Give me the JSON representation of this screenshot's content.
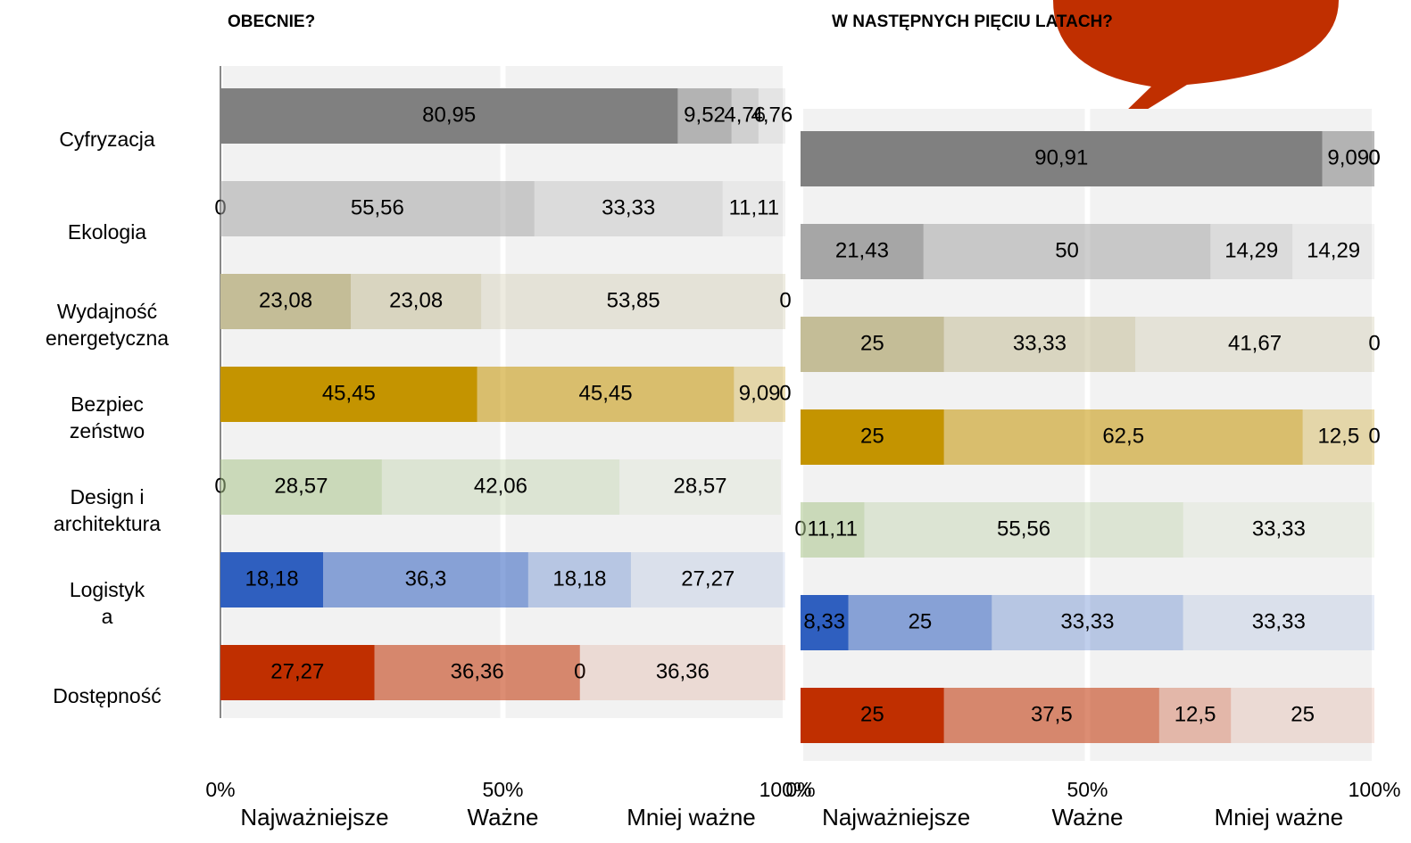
{
  "chart_data": [
    {
      "type": "stacked-bar",
      "title": "OBECNIE?",
      "categories": [
        "Cyfryzacja",
        "Ekologia",
        "Wydajność\nenergetyczna",
        "Bezpiec\nzeństwo",
        "Design i\narchitektura",
        "Logistyk\na",
        "Dostępność"
      ],
      "colors": [
        "#808080",
        "#a6a6a6",
        "#c4bd97",
        "#c49400",
        "#a9c48a",
        "#2f5fbf",
        "#c02f00"
      ],
      "series": [
        {
          "name": "Najważniejsze",
          "values": [
            80.95,
            0,
            23.08,
            45.45,
            0,
            18.18,
            27.27
          ],
          "value_labels": [
            "80,95",
            "0",
            "23,08",
            "45,45",
            "0",
            "18,18",
            "27,27"
          ]
        },
        {
          "name": "Ważne",
          "values": [
            9.52,
            55.56,
            23.08,
            45.45,
            28.57,
            36.3,
            36.36
          ],
          "value_labels": [
            "9,52",
            "55,56",
            "23,08",
            "45,45",
            "28,57",
            "36,3",
            "36,36"
          ]
        },
        {
          "name": "Mniej ważne",
          "values": [
            4.76,
            33.33,
            53.85,
            9.09,
            42.06,
            18.18,
            0
          ],
          "value_labels": [
            "4,76",
            "33,33",
            "53,85",
            "9,09",
            "42,06",
            "18,18",
            "0"
          ]
        },
        {
          "values": [
            4.76,
            11.11,
            0,
            0,
            28.57,
            27.27,
            36.36
          ],
          "value_labels": [
            "4,76",
            "11,11",
            "0",
            "0",
            "28,57",
            "27,27",
            "36,36"
          ]
        }
      ],
      "xlim": [
        0,
        100
      ],
      "xticks": [
        {
          "value": 0,
          "label": "0%"
        },
        {
          "value": 50,
          "label": "50%"
        },
        {
          "value": 100,
          "label": "100%"
        }
      ]
    },
    {
      "type": "stacked-bar",
      "title": "W NASTĘPNYCH PIĘCIU LATACH?",
      "colors": [
        "#808080",
        "#a6a6a6",
        "#c4bd97",
        "#c49400",
        "#a9c48a",
        "#2f5fbf",
        "#c02f00"
      ],
      "series": [
        {
          "name": "Najważniejsze",
          "values": [
            90.91,
            21.43,
            25,
            25,
            0,
            8.33,
            25
          ],
          "value_labels": [
            "90,91",
            "21,43",
            "25",
            "25",
            "0",
            "8,33",
            "25"
          ]
        },
        {
          "name": "Ważne",
          "values": [
            9.09,
            50,
            33.33,
            62.5,
            11.11,
            25,
            37.5
          ],
          "value_labels": [
            "9,09",
            "50",
            "33,33",
            "62,5",
            "11,11",
            "25",
            "37,5"
          ]
        },
        {
          "name": "Mniej ważne",
          "values": [
            0,
            14.29,
            41.67,
            12.5,
            55.56,
            33.33,
            12.5
          ],
          "value_labels": [
            "0",
            "14,29",
            "41,67",
            "12,5",
            "55,56",
            "33,33",
            "12,5"
          ]
        },
        {
          "values": [
            0,
            14.29,
            0,
            0,
            33.33,
            33.33,
            25
          ],
          "value_labels": [
            "0",
            "14,29",
            "0",
            "0",
            "33,33",
            "33,33",
            "25"
          ]
        }
      ],
      "xlim": [
        0,
        100
      ],
      "xticks": [
        {
          "value": 0,
          "label": "0%"
        },
        {
          "value": 50,
          "label": "50%"
        },
        {
          "value": 100,
          "label": "100%"
        }
      ]
    }
  ]
}
